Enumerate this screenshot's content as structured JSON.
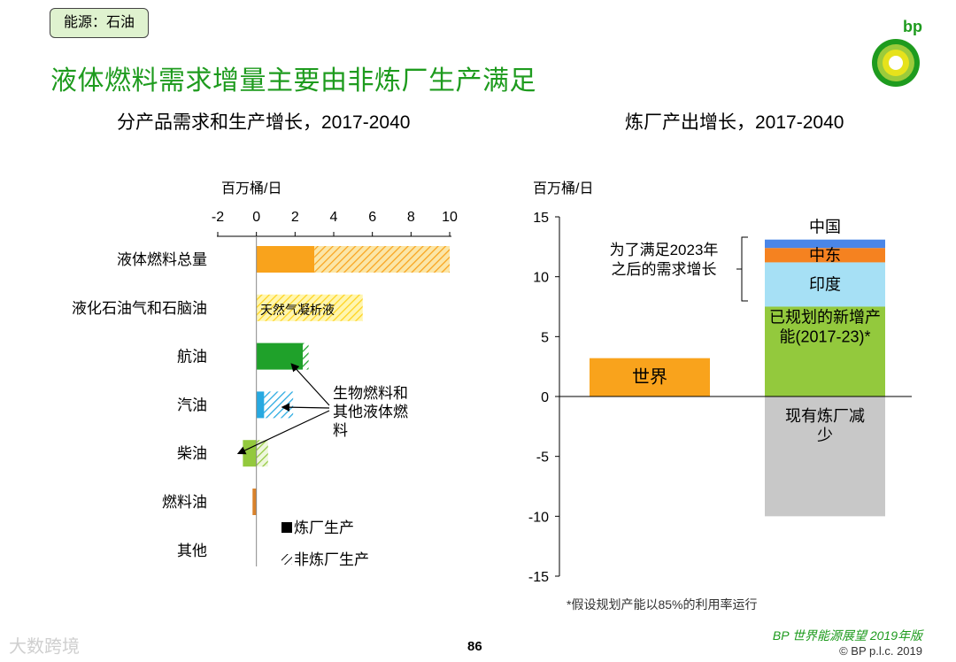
{
  "tag": "能源：石油",
  "title": "液体燃料需求增量主要由非炼厂生产满足",
  "brand": {
    "logo": "bp",
    "report": "BP 世界能源展望 2019年版",
    "copyright": "© BP p.l.c. 2019"
  },
  "page_number": "86",
  "footnote": "*假设规划产能以85%的利用率运行",
  "watermark": "大数跨境",
  "colors": {
    "title_green": "#1e9b1e",
    "orange": "#f9a31c",
    "yellow": "#ffe040",
    "green": "#1fa12a",
    "blue": "#27a9e1",
    "lime": "#93c93d",
    "rust": "#d9822b",
    "gray": "#c8c8c8",
    "china_blue": "#4a86e8",
    "mideast_orange": "#f58220",
    "india_blue": "#a6e0f5"
  },
  "chart_data": [
    {
      "type": "bar",
      "orientation": "horizontal",
      "title": "分产品需求和生产增长，2017-2040",
      "ylabel": "",
      "xlabel": "百万桶/日",
      "xlim": [
        -2,
        10
      ],
      "xticks": [
        "-2",
        "0",
        "2",
        "4",
        "6",
        "8",
        "10"
      ],
      "categories": [
        "液体燃料总量",
        "液化石油气和石脑油",
        "航油",
        "汽油",
        "柴油",
        "燃料油",
        "其他"
      ],
      "series": [
        {
          "name": "炼厂生产",
          "values": [
            3.0,
            0,
            2.4,
            0.4,
            -0.7,
            -0.2,
            0
          ]
        },
        {
          "name": "非炼厂生产",
          "values": [
            7.0,
            5.5,
            0.3,
            1.5,
            0.6,
            0,
            0
          ]
        }
      ],
      "bar_colors": [
        "#f9a31c",
        "#ffe040",
        "#1fa12a",
        "#27a9e1",
        "#93c93d",
        "#d9822b",
        "#ffffff"
      ],
      "annotations": {
        "ngl": "天然气凝析液",
        "biofuels": "生物燃料和\n其他液体燃\n料"
      },
      "legend": [
        "炼厂生产",
        "非炼厂生产"
      ]
    },
    {
      "type": "bar",
      "stacked": true,
      "title": "炼厂产出增长，2017-2040",
      "ylabel": "百万桶/日",
      "ylim": [
        -15,
        15
      ],
      "yticks": [
        "15",
        "10",
        "5",
        "0",
        "-5",
        "-10",
        "-15"
      ],
      "bars": [
        {
          "name": "世界",
          "segments": [
            {
              "label": "世界",
              "value": 3.2,
              "color": "#f9a31c"
            }
          ]
        },
        {
          "name": "",
          "segments": [
            {
              "label": "现有炼厂减少",
              "value": -10.0,
              "color": "#c8c8c8"
            },
            {
              "label": "已规划的新增产能(2017-23)*",
              "value": 7.5,
              "color": "#93c93d"
            },
            {
              "label": "印度",
              "value": 3.7,
              "color": "#a6e0f5"
            },
            {
              "label": "中东",
              "value": 1.2,
              "color": "#f58220"
            },
            {
              "label": "中国",
              "value": 0.7,
              "color": "#4a86e8"
            }
          ]
        }
      ],
      "bracket_annotation": "为了满足2023年\n之后的需求增长"
    }
  ]
}
